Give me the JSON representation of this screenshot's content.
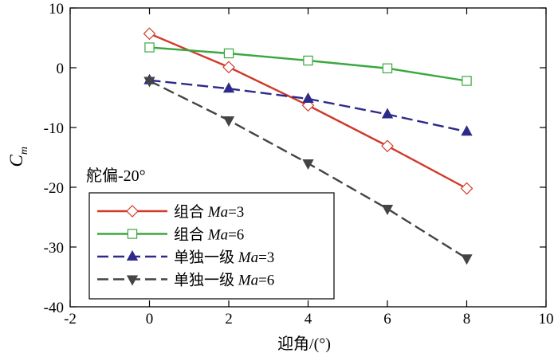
{
  "chart_data": {
    "type": "line",
    "title": "",
    "xlabel": "迎角/(°)",
    "ylabel": {
      "main": "C",
      "sub": "m"
    },
    "xlim": [
      -2,
      10
    ],
    "ylim": [
      -40,
      10
    ],
    "xticks": [
      -2,
      0,
      2,
      4,
      6,
      8,
      10
    ],
    "yticks": [
      -40,
      -30,
      -20,
      -10,
      0,
      10
    ],
    "grid": false,
    "annotation": "舵偏-20°",
    "legend_position": "bottom-left",
    "series": [
      {
        "name": "组合 Ma=3",
        "label_prefix": "组合 ",
        "label_italic": "Ma",
        "label_suffix": "=3",
        "color": "#d03a2a",
        "marker": "diamond-open",
        "dash": "solid",
        "x": [
          0,
          2,
          4,
          6,
          8
        ],
        "y": [
          5.7,
          0.1,
          -6.3,
          -13.1,
          -20.2
        ]
      },
      {
        "name": "组合 Ma=6",
        "label_prefix": "组合 ",
        "label_italic": "Ma",
        "label_suffix": "=6",
        "color": "#3aa840",
        "marker": "square-open",
        "dash": "solid",
        "x": [
          0,
          2,
          4,
          6,
          8
        ],
        "y": [
          3.4,
          2.4,
          1.2,
          -0.1,
          -2.2
        ]
      },
      {
        "name": "单独一级 Ma=3",
        "label_prefix": "单独一级 ",
        "label_italic": "Ma",
        "label_suffix": "=3",
        "color": "#2e2a8a",
        "marker": "triangle-up-filled",
        "dash": "dashed",
        "x": [
          0,
          2,
          4,
          6,
          8
        ],
        "y": [
          -2.1,
          -3.5,
          -5.2,
          -7.8,
          -10.7
        ]
      },
      {
        "name": "单独一级 Ma=6",
        "label_prefix": "单独一级 ",
        "label_italic": "Ma",
        "label_suffix": "=6",
        "color": "#444444",
        "marker": "triangle-down-filled",
        "dash": "dashed",
        "x": [
          0,
          2,
          4,
          6,
          8
        ],
        "y": [
          -2.2,
          -8.8,
          -16.0,
          -23.6,
          -31.9
        ]
      }
    ]
  }
}
